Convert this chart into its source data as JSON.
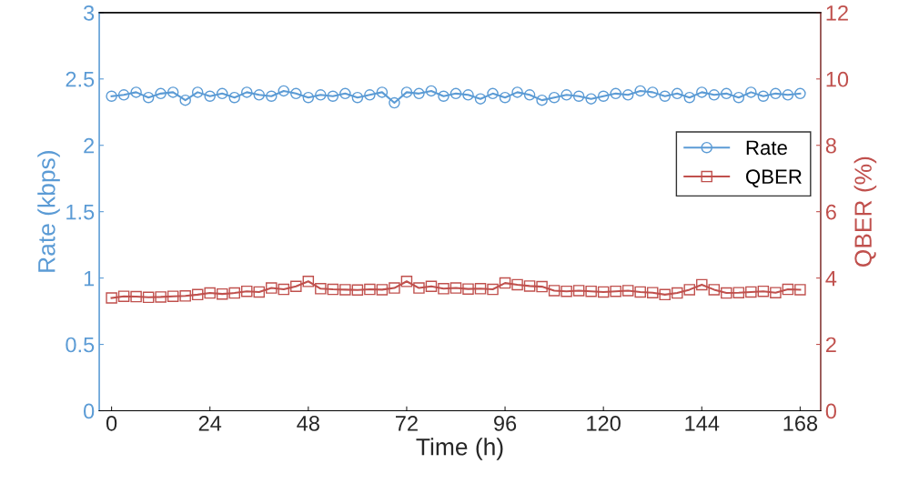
{
  "chart_data": {
    "type": "line",
    "xlabel": "Time (h)",
    "ylabel": "Rate (kbps)",
    "y2label": "QBER (%)",
    "x": [
      0,
      3,
      6,
      9,
      12,
      15,
      18,
      21,
      24,
      27,
      30,
      33,
      36,
      39,
      42,
      45,
      48,
      51,
      54,
      57,
      60,
      63,
      66,
      69,
      72,
      75,
      78,
      81,
      84,
      87,
      90,
      93,
      96,
      99,
      102,
      105,
      108,
      111,
      114,
      117,
      120,
      123,
      126,
      129,
      132,
      135,
      138,
      141,
      144,
      147,
      150,
      153,
      156,
      159,
      162,
      165,
      168
    ],
    "series": [
      {
        "name": "Rate",
        "color": "#5b9bd5",
        "marker": "circle",
        "values": [
          2.37,
          2.38,
          2.4,
          2.36,
          2.39,
          2.4,
          2.34,
          2.4,
          2.37,
          2.39,
          2.36,
          2.4,
          2.38,
          2.37,
          2.41,
          2.39,
          2.36,
          2.38,
          2.37,
          2.39,
          2.36,
          2.38,
          2.4,
          2.32,
          2.4,
          2.39,
          2.41,
          2.37,
          2.39,
          2.38,
          2.35,
          2.39,
          2.36,
          2.4,
          2.38,
          2.34,
          2.36,
          2.38,
          2.37,
          2.35,
          2.37,
          2.39,
          2.38,
          2.41,
          2.4,
          2.37,
          2.39,
          2.36,
          2.4,
          2.38,
          2.39,
          2.36,
          2.4,
          2.37,
          2.39,
          2.38,
          2.39
        ]
      },
      {
        "name": "QBER",
        "color": "#c0504d",
        "marker": "square",
        "axis": "y2",
        "values": [
          3.4,
          3.45,
          3.44,
          3.42,
          3.43,
          3.45,
          3.46,
          3.5,
          3.55,
          3.52,
          3.55,
          3.6,
          3.58,
          3.7,
          3.66,
          3.75,
          3.9,
          3.68,
          3.66,
          3.65,
          3.64,
          3.66,
          3.65,
          3.7,
          3.9,
          3.7,
          3.75,
          3.68,
          3.7,
          3.67,
          3.68,
          3.66,
          3.85,
          3.8,
          3.76,
          3.74,
          3.62,
          3.6,
          3.62,
          3.6,
          3.58,
          3.6,
          3.62,
          3.58,
          3.56,
          3.5,
          3.55,
          3.65,
          3.8,
          3.65,
          3.55,
          3.56,
          3.58,
          3.6,
          3.56,
          3.66,
          3.65
        ]
      }
    ],
    "xlim": [
      -3,
      173
    ],
    "xticks": [
      0,
      24,
      48,
      72,
      96,
      120,
      144,
      168
    ],
    "ylim": [
      0,
      3
    ],
    "yticks": [
      0,
      0.5,
      1,
      1.5,
      2,
      2.5,
      3
    ],
    "y2lim": [
      0,
      12
    ],
    "y2ticks": [
      0,
      2,
      4,
      6,
      8,
      10,
      12
    ],
    "grid": false,
    "legend": "right",
    "line_style": "solid"
  }
}
